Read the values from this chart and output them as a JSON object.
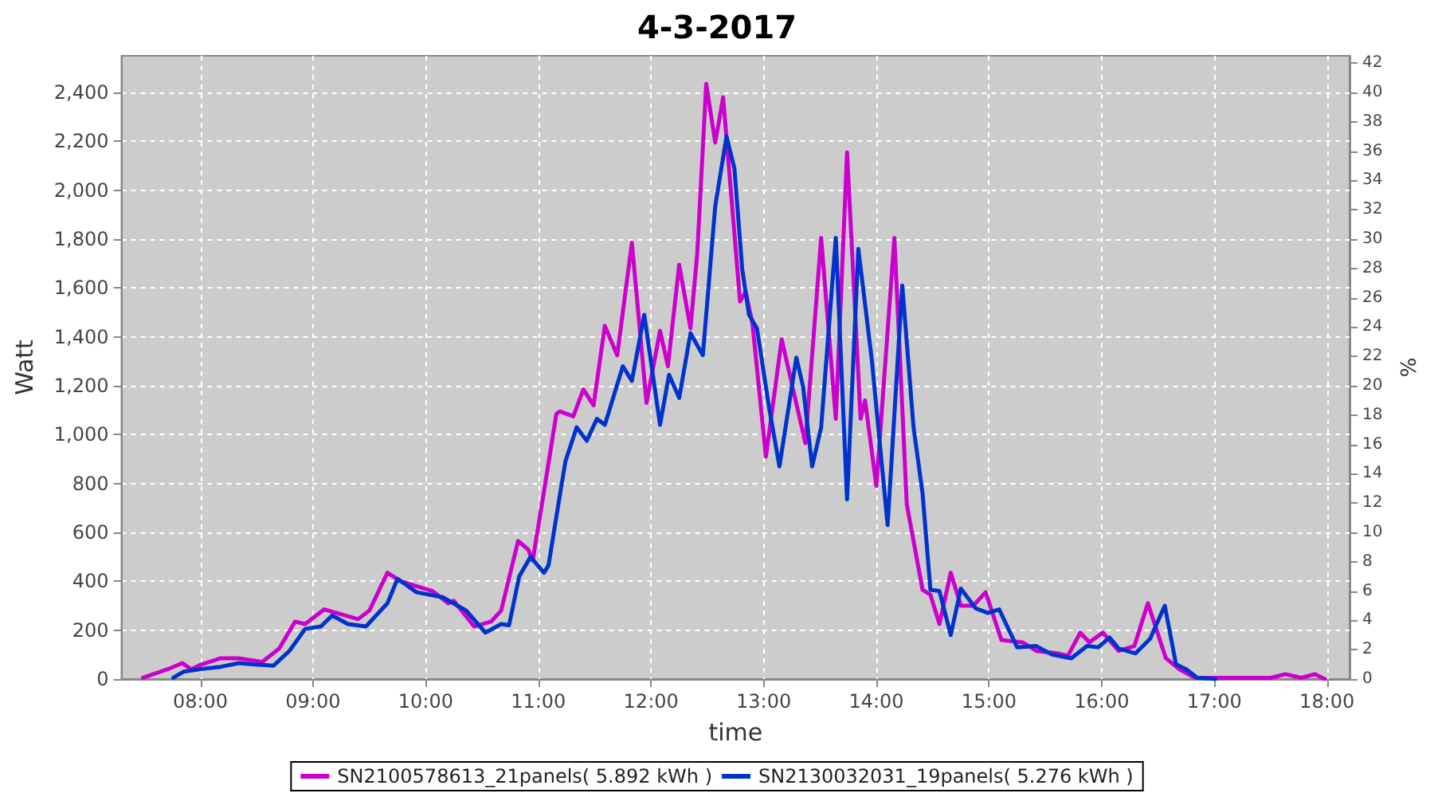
{
  "chart_data": {
    "type": "line",
    "title": "4-3-2017",
    "xlabel": "time",
    "ylabel": "Watt",
    "y2label": "%",
    "xlim": [
      7.3,
      18.2
    ],
    "xticks": [
      {
        "value": 8,
        "label": "08:00"
      },
      {
        "value": 9,
        "label": "09:00"
      },
      {
        "value": 10,
        "label": "10:00"
      },
      {
        "value": 11,
        "label": "11:00"
      },
      {
        "value": 12,
        "label": "12:00"
      },
      {
        "value": 13,
        "label": "13:00"
      },
      {
        "value": 14,
        "label": "14:00"
      },
      {
        "value": 15,
        "label": "15:00"
      },
      {
        "value": 16,
        "label": "16:00"
      },
      {
        "value": 17,
        "label": "17:00"
      },
      {
        "value": 18,
        "label": "18:00"
      }
    ],
    "ylim": [
      0,
      2550
    ],
    "yticks": [
      0,
      200,
      400,
      600,
      800,
      {
        "value": 1000,
        "label": "1,000"
      },
      {
        "value": 1200,
        "label": "1,200"
      },
      {
        "value": 1400,
        "label": "1,400"
      },
      {
        "value": 1600,
        "label": "1,600"
      },
      {
        "value": 1800,
        "label": "1,800"
      },
      {
        "value": 2000,
        "label": "2,000"
      },
      {
        "value": 2200,
        "label": "2,200"
      },
      {
        "value": 2400,
        "label": "2,400"
      }
    ],
    "y2lim": [
      0,
      42.5
    ],
    "y2ticks": [
      0,
      2,
      4,
      6,
      8,
      10,
      12,
      14,
      16,
      18,
      20,
      22,
      24,
      26,
      28,
      30,
      32,
      34,
      36,
      38,
      40,
      42
    ],
    "grid": true,
    "legend": "bottom",
    "line_style": "solid",
    "series": [
      {
        "name": "SN2100578613_21panels( 5.892 kWh )",
        "color": "#cc00cc",
        "x": [
          7.49,
          7.71,
          7.84,
          7.92,
          8.01,
          8.18,
          8.34,
          8.55,
          8.7,
          8.84,
          8.93,
          9.1,
          9.21,
          9.4,
          9.5,
          9.66,
          9.78,
          10.06,
          10.2,
          10.25,
          10.43,
          10.58,
          10.67,
          10.82,
          10.91,
          10.95,
          11.07,
          11.16,
          11.19,
          11.31,
          11.4,
          11.49,
          11.59,
          11.7,
          11.83,
          11.96,
          12.08,
          12.15,
          12.25,
          12.35,
          12.41,
          12.49,
          12.57,
          12.64,
          12.79,
          12.84,
          12.9,
          13.02,
          13.16,
          13.37,
          13.51,
          13.64,
          13.74,
          13.86,
          13.9,
          14.0,
          14.16,
          14.27,
          14.41,
          14.48,
          14.56,
          14.66,
          14.75,
          14.86,
          14.97,
          15.11,
          15.3,
          15.42,
          15.61,
          15.7,
          15.81,
          15.89,
          16.01,
          16.15,
          16.29,
          16.41,
          16.57,
          16.69,
          16.83,
          16.97,
          17.5,
          17.63,
          17.77,
          17.89,
          17.98
        ],
        "values": [
          5,
          40,
          65,
          40,
          60,
          85,
          85,
          70,
          125,
          235,
          225,
          285,
          270,
          245,
          280,
          435,
          400,
          360,
          310,
          320,
          215,
          235,
          280,
          565,
          530,
          485,
          825,
          1085,
          1095,
          1075,
          1185,
          1120,
          1445,
          1325,
          1785,
          1130,
          1425,
          1280,
          1695,
          1435,
          1740,
          2435,
          2195,
          2380,
          1545,
          1585,
          1455,
          910,
          1390,
          965,
          1805,
          1065,
          2155,
          1065,
          1140,
          790,
          1805,
          715,
          365,
          345,
          225,
          435,
          300,
          300,
          355,
          160,
          150,
          115,
          105,
          95,
          190,
          150,
          190,
          115,
          135,
          310,
          85,
          40,
          5,
          5,
          5,
          20,
          5,
          20,
          0
        ]
      },
      {
        "name": "SN2130032031_19panels( 5.276 kWh )",
        "color": "#0033cc",
        "x": [
          7.76,
          7.85,
          7.99,
          8.18,
          8.34,
          8.46,
          8.65,
          8.79,
          8.93,
          9.07,
          9.17,
          9.31,
          9.47,
          9.66,
          9.75,
          9.92,
          10.15,
          10.36,
          10.53,
          10.67,
          10.74,
          10.83,
          10.93,
          11.05,
          11.09,
          11.19,
          11.24,
          11.34,
          11.43,
          11.52,
          11.59,
          11.75,
          11.83,
          11.94,
          12.08,
          12.16,
          12.25,
          12.35,
          12.46,
          12.57,
          12.67,
          12.74,
          12.81,
          12.87,
          12.94,
          13.05,
          13.14,
          13.29,
          13.35,
          13.43,
          13.51,
          13.64,
          13.74,
          13.84,
          13.96,
          14.1,
          14.23,
          14.33,
          14.41,
          14.48,
          14.56,
          14.66,
          14.75,
          14.88,
          14.99,
          15.09,
          15.25,
          15.42,
          15.56,
          15.73,
          15.87,
          15.97,
          16.07,
          16.15,
          16.3,
          16.43,
          16.56,
          16.66,
          16.75,
          16.85,
          17.01
        ],
        "values": [
          5,
          30,
          40,
          50,
          65,
          60,
          55,
          115,
          205,
          215,
          260,
          225,
          215,
          310,
          410,
          355,
          335,
          280,
          190,
          225,
          220,
          420,
          500,
          435,
          465,
          750,
          890,
          1030,
          975,
          1065,
          1040,
          1280,
          1220,
          1490,
          1040,
          1245,
          1150,
          1415,
          1325,
          1935,
          2220,
          2090,
          1675,
          1490,
          1435,
          1105,
          870,
          1315,
          1195,
          870,
          1030,
          1805,
          735,
          1760,
          1305,
          630,
          1610,
          1030,
          760,
          365,
          360,
          180,
          370,
          290,
          270,
          285,
          130,
          135,
          100,
          85,
          135,
          130,
          170,
          125,
          105,
          165,
          300,
          60,
          40,
          5,
          0
        ]
      }
    ]
  }
}
